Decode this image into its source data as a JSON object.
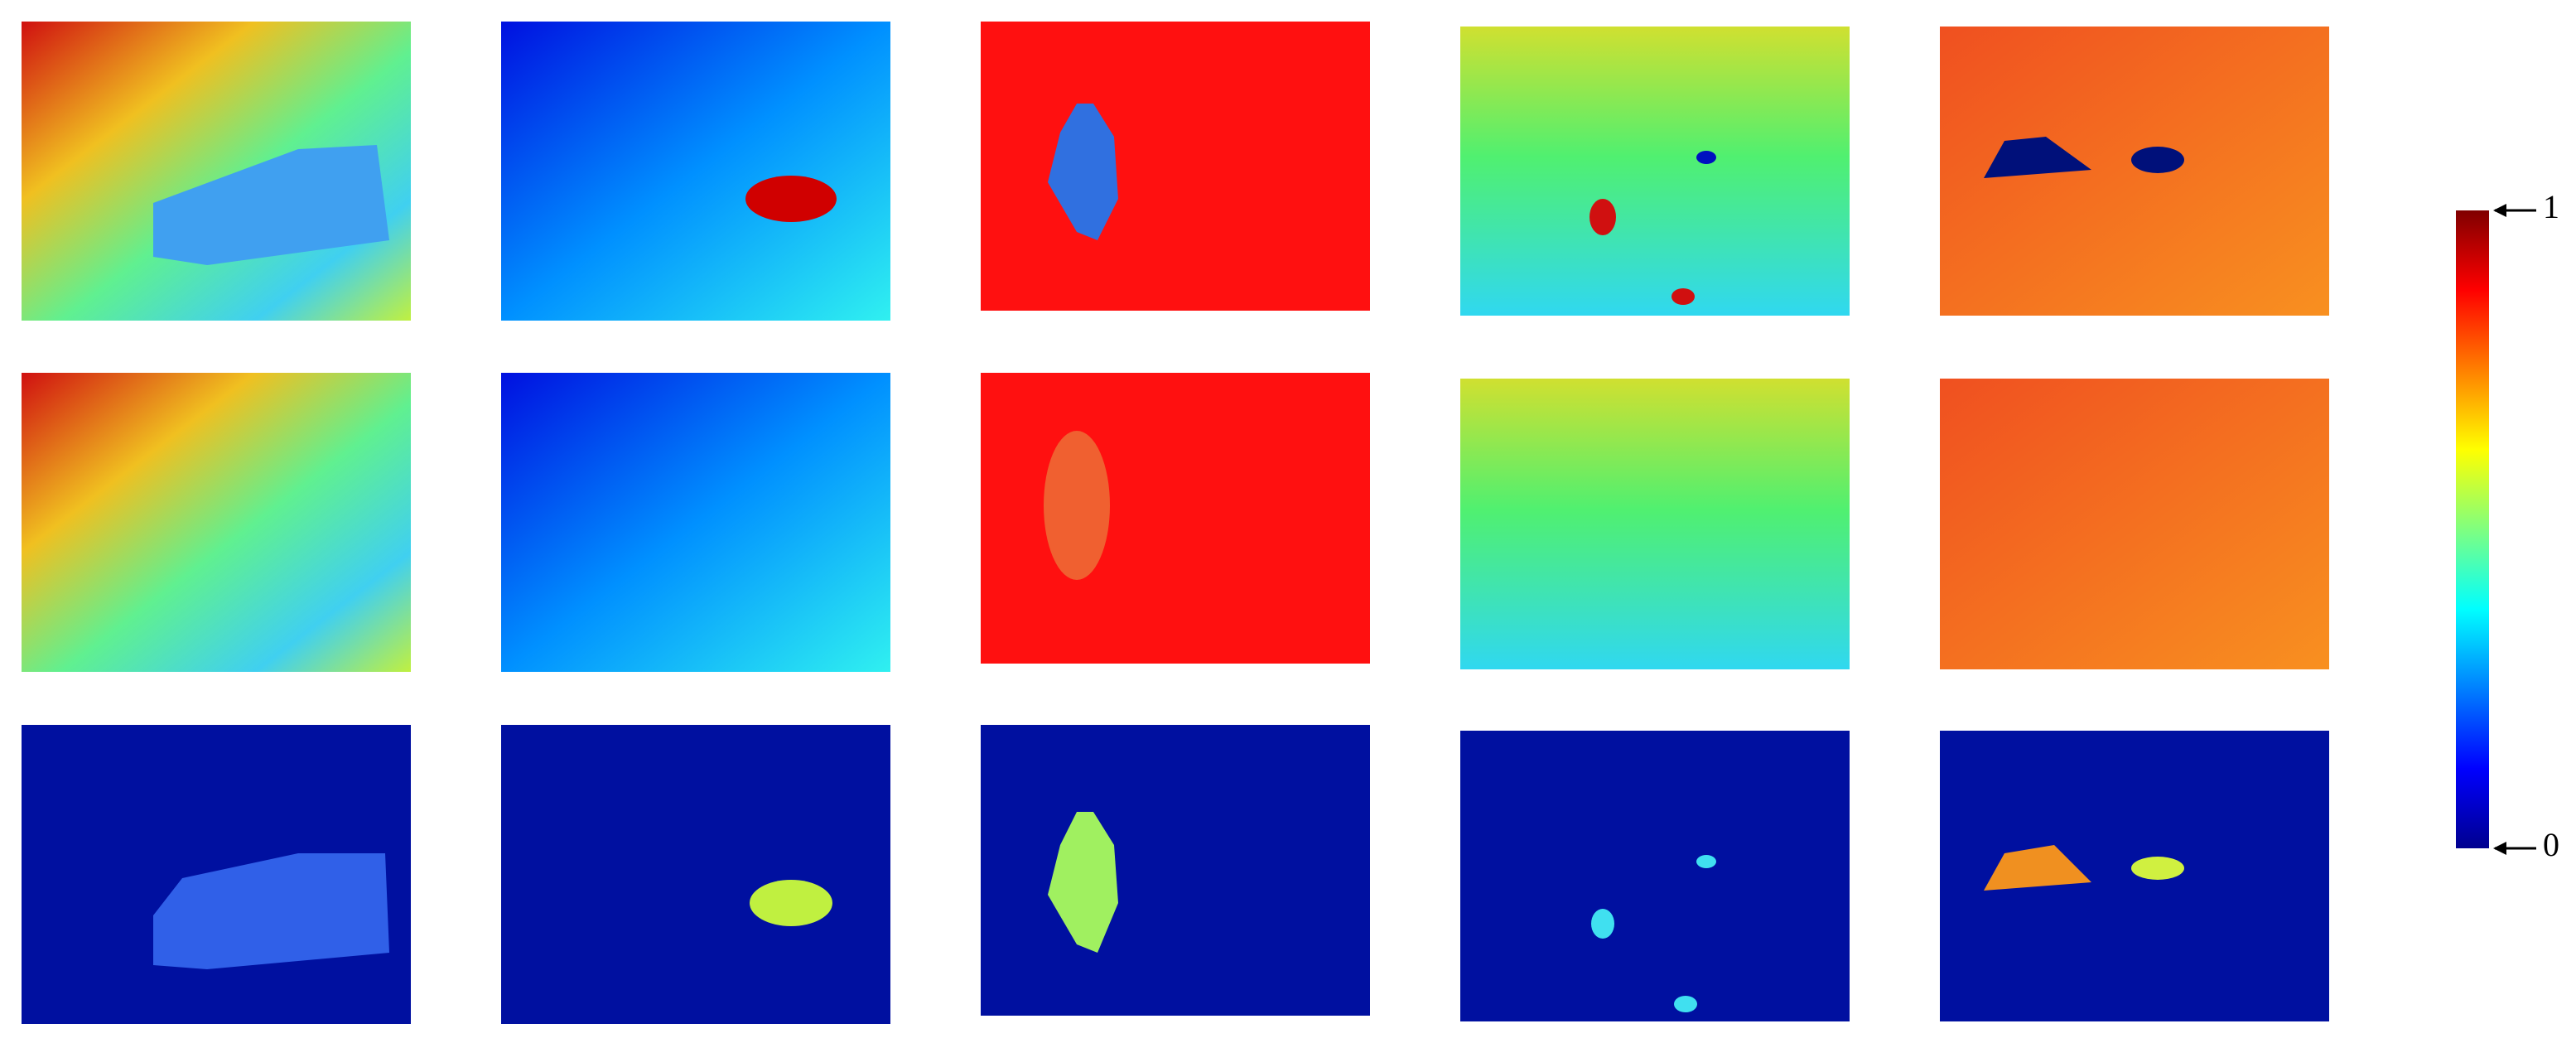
{
  "colorbar": {
    "max_label": "1",
    "min_label": "0"
  }
}
